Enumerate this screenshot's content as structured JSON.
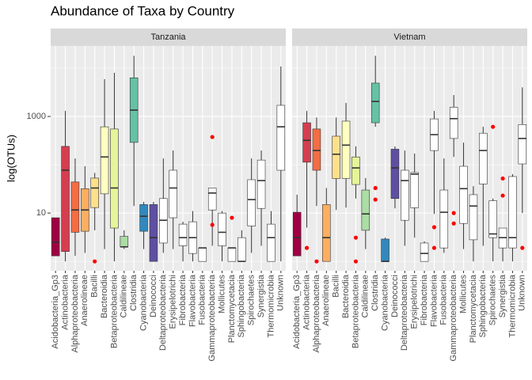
{
  "chart_data": {
    "type": "boxplot",
    "title": "Abundance of Taxa by Country",
    "y_label": "log(OTUs)",
    "log_y": true,
    "ylim": [
      0.64,
      28800
    ],
    "yticks": [
      10,
      1000
    ],
    "minor_yticks": [
      1,
      100,
      10000
    ],
    "outlier_color": "#FF0000",
    "categories": [
      "Acidobacteria_Gp3",
      "Actinobacteria",
      "Alphaproteobacteria",
      "Anaerolineae",
      "Bacilli",
      "Bacteroidia",
      "Betaproteobacteria",
      "Caldilineae",
      "Clostridia",
      "Cyanobacteria",
      "Deinococci",
      "Deltaproteobacteria",
      "Erysipelotrichi",
      "Fibrobacteria",
      "Flavobacteria",
      "Fusobacteria",
      "Gammaproteobacteria",
      "Mollicutes",
      "Planctomycetacia",
      "Sphingobacteria",
      "Spirochaetes",
      "Synergistia",
      "Thermomicrobia",
      "Unknown"
    ],
    "colors": [
      "#9E0142",
      "#D53E4F",
      "#F46D43",
      "#FDAE61",
      "#FEE08B",
      "#FFFFBF",
      "#E6F598",
      "#ABDDA4",
      "#66C2A5",
      "#3288BD",
      "#5E4FA2",
      "#FFFFFF",
      "#FFFFFF",
      "#FFFFFF",
      "#FFFFFF",
      "#FFFFFF",
      "#FFFFFF",
      "#FFFFFF",
      "#FFFFFF",
      "#FFFFFF",
      "#FFFFFF",
      "#FFFFFF",
      "#FFFFFF",
      "#FFFFFF"
    ],
    "facets": [
      {
        "name": "Tanzania",
        "boxes": [
          {
            "low": 1.3,
            "q1": 1.3,
            "median": 2.5,
            "q3": 8,
            "high": 8
          },
          {
            "low": 1.0,
            "q1": 1.6,
            "median": 77,
            "q3": 240,
            "high": 1300
          },
          {
            "low": 1.3,
            "q1": 4,
            "median": 11.6,
            "q3": 44,
            "high": 135
          },
          {
            "low": 1.5,
            "q1": 4.2,
            "median": 11.6,
            "q3": 32,
            "high": 93
          },
          {
            "low": 4.4,
            "q1": 13,
            "median": 33,
            "q3": 53,
            "high": 68,
            "outliers": [
              1.0
            ]
          },
          {
            "low": 1.8,
            "q1": 25,
            "median": 145,
            "q3": 610,
            "high": 5900
          },
          {
            "low": 1.0,
            "q1": 4.9,
            "median": 33,
            "q3": 550,
            "high": 8000
          },
          {
            "low": 1.8,
            "q1": 2.0,
            "median": 2.0,
            "q3": 3.3,
            "high": 4.4
          },
          {
            "low": 14,
            "q1": 290,
            "median": 1350,
            "q3": 6300,
            "high": 18000
          },
          {
            "low": 1.8,
            "q1": 4.2,
            "median": 8.6,
            "q3": 15,
            "high": 17
          },
          {
            "low": 1.0,
            "q1": 1.0,
            "median": 3.1,
            "q3": 15,
            "high": 17
          },
          {
            "low": 1.5,
            "q1": 2.4,
            "median": 7.1,
            "q3": 20,
            "high": 135
          },
          {
            "low": 1.8,
            "q1": 8,
            "median": 33,
            "q3": 77,
            "high": 197
          },
          {
            "low": 1.0,
            "q1": 2.1,
            "median": 3.1,
            "q3": 5.9,
            "high": 6.6
          },
          {
            "low": 1.0,
            "q1": 1.46,
            "median": 3.1,
            "q3": 6.6,
            "high": 11
          },
          {
            "low": 1.0,
            "q1": 1.0,
            "median": 1.9,
            "q3": 1.9,
            "high": 1.9
          },
          {
            "low": 2.1,
            "q1": 11.6,
            "median": 26,
            "q3": 33,
            "high": 33,
            "outliers": [
              375,
              5.7
            ]
          },
          {
            "low": 1.0,
            "q1": 2.1,
            "median": 4.0,
            "q3": 10,
            "high": 11
          },
          {
            "low": 1.0,
            "q1": 1.0,
            "median": 1.9,
            "q3": 1.9,
            "high": 1.9,
            "outliers": [
              8
            ]
          },
          {
            "low": 1.0,
            "q1": 1.0,
            "median": 1.0,
            "q3": 3.1,
            "high": 4.4
          },
          {
            "low": 1.5,
            "q1": 5.4,
            "median": 19,
            "q3": 49,
            "high": 135
          },
          {
            "low": 2.1,
            "q1": 12.5,
            "median": 47,
            "q3": 125,
            "high": 197
          },
          {
            "low": 1.0,
            "q1": 1.0,
            "median": 3.1,
            "q3": 5.9,
            "high": 11
          },
          {
            "low": 1.0,
            "q1": 77,
            "median": 610,
            "q3": 1700,
            "high": 10800
          }
        ]
      },
      {
        "name": "Vietnam",
        "boxes": [
          {
            "low": 1.3,
            "q1": 1.3,
            "median": 3.1,
            "q3": 10.4,
            "high": 24
          },
          {
            "low": 5,
            "q1": 113,
            "median": 320,
            "q3": 740,
            "high": 1300,
            "outliers": [
              1.9
            ]
          },
          {
            "low": 14,
            "q1": 77,
            "median": 197,
            "q3": 550,
            "high": 950,
            "outliers": [
              1.0
            ]
          },
          {
            "low": 1.0,
            "q1": 1.0,
            "median": 3.1,
            "q3": 15,
            "high": 33
          },
          {
            "low": 11.6,
            "q1": 52,
            "median": 165,
            "q3": 390,
            "high": 950
          },
          {
            "low": 13,
            "q1": 52,
            "median": 255,
            "q3": 800,
            "high": 1900
          },
          {
            "low": 20,
            "q1": 39,
            "median": 86,
            "q3": 145,
            "high": 240,
            "outliers": [
              3.1,
              1.0
            ]
          },
          {
            "low": 1.8,
            "q1": 4.4,
            "median": 9.6,
            "q3": 30,
            "high": 53
          },
          {
            "low": 610,
            "q1": 740,
            "median": 2040,
            "q3": 4900,
            "high": 18000,
            "outliers": [
              33,
              19
            ]
          },
          {
            "low": 1.0,
            "q1": 1.0,
            "median": 1.0,
            "q3": 2.9,
            "high": 3.1
          },
          {
            "low": 12.5,
            "q1": 20,
            "median": 86,
            "q3": 210,
            "high": 240
          },
          {
            "low": 2.1,
            "q1": 7.1,
            "median": 47,
            "q3": 77,
            "high": 197
          },
          {
            "low": 3.1,
            "q1": 12.9,
            "median": 64,
            "q3": 69,
            "high": 170
          },
          {
            "low": 1.0,
            "q1": 1.0,
            "median": 1.46,
            "q3": 2.4,
            "high": 2.6
          },
          {
            "low": 9.6,
            "q1": 197,
            "median": 420,
            "q3": 890,
            "high": 1300,
            "outliers": [
              5.1,
              1.9
            ]
          },
          {
            "low": 1.5,
            "q1": 1.9,
            "median": 10.4,
            "q3": 30,
            "high": 135
          },
          {
            "low": 145,
            "q1": 350,
            "median": 900,
            "q3": 1550,
            "high": 2770,
            "outliers": [
              10,
              6.1
            ]
          },
          {
            "low": 1.8,
            "q1": 6.1,
            "median": 32,
            "q3": 93,
            "high": 287
          },
          {
            "low": 1.0,
            "q1": 2.8,
            "median": 14,
            "q3": 24,
            "high": 36
          },
          {
            "low": 2.1,
            "q1": 40,
            "median": 197,
            "q3": 450,
            "high": 610
          },
          {
            "low": 1.0,
            "q1": 3.1,
            "median": 3.7,
            "q3": 18,
            "high": 20,
            "outliers": [
              610
            ]
          },
          {
            "low": 1.0,
            "q1": 1.9,
            "median": 3.1,
            "q3": 4.9,
            "high": 4.9,
            "outliers": [
              52,
              23
            ]
          },
          {
            "low": 1.0,
            "q1": 1.9,
            "median": 3.1,
            "q3": 57,
            "high": 64
          },
          {
            "low": 10,
            "q1": 104,
            "median": 350,
            "q3": 680,
            "high": 4000,
            "outliers": [
              1.9
            ]
          }
        ]
      }
    ]
  }
}
